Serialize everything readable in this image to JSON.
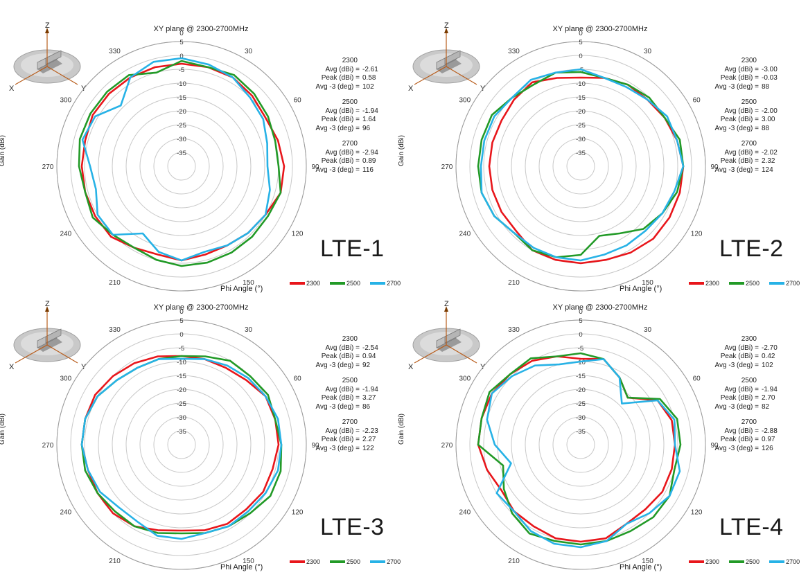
{
  "colors": {
    "s2300": "#e8161b",
    "s2500": "#229a27",
    "s2700": "#27b2e6",
    "grid": "#c8c8c8"
  },
  "common": {
    "chart_title": "XY plane @ 2300-2700MHz",
    "ylabel": "Gain (dBi)",
    "xlabel": "Phi Angle (°)",
    "angle_ticks": [
      "0",
      "30",
      "60",
      "90",
      "120",
      "150",
      "180",
      "210",
      "240",
      "270",
      "300",
      "330"
    ],
    "radial_ticks": [
      "5",
      "0",
      "-5",
      "-10",
      "-15",
      "-20",
      "-25",
      "-30",
      "-35"
    ],
    "axes_icon": {
      "z": "Z",
      "x": "X",
      "y": "Y"
    },
    "legend": [
      "2300",
      "2500",
      "2700"
    ],
    "stat_labels": {
      "avg": "Avg (dBi) =",
      "peak": "Peak (dBi) =",
      "avg3": "Avg -3 (deg) ="
    }
  },
  "panels": [
    {
      "label": "LTE-1",
      "stats": [
        {
          "freq": "2300",
          "avg": "-2.61",
          "peak": "0.58",
          "avg3": "102"
        },
        {
          "freq": "2500",
          "avg": "-1.94",
          "peak": "1.64",
          "avg3": "96"
        },
        {
          "freq": "2700",
          "avg": "-2.94",
          "peak": "0.89",
          "avg3": "116"
        }
      ]
    },
    {
      "label": "LTE-2",
      "stats": [
        {
          "freq": "2300",
          "avg": "-3.00",
          "peak": "-0.03",
          "avg3": "88"
        },
        {
          "freq": "2500",
          "avg": "-2.00",
          "peak": "3.00",
          "avg3": "88"
        },
        {
          "freq": "2700",
          "avg": "-2.02",
          "peak": "2.32",
          "avg3": "124"
        }
      ]
    },
    {
      "label": "LTE-3",
      "stats": [
        {
          "freq": "2300",
          "avg": "-2.54",
          "peak": "0.94",
          "avg3": "92"
        },
        {
          "freq": "2500",
          "avg": "-1.94",
          "peak": "3.27",
          "avg3": "86"
        },
        {
          "freq": "2700",
          "avg": "-2.23",
          "peak": "2.27",
          "avg3": "122"
        }
      ]
    },
    {
      "label": "LTE-4",
      "stats": [
        {
          "freq": "2300",
          "avg": "-2.70",
          "peak": "0.42",
          "avg3": "102"
        },
        {
          "freq": "2500",
          "avg": "-1.94",
          "peak": "2.70",
          "avg3": "82"
        },
        {
          "freq": "2700",
          "avg": "-2.88",
          "peak": "0.97",
          "avg3": "126"
        }
      ]
    }
  ],
  "chart_data": [
    {
      "type": "polar-line",
      "title": "XY plane @ 2300-2700MHz",
      "panel": "LTE-1",
      "xlabel": "Phi Angle (°)",
      "ylabel": "Gain (dBi)",
      "rlim": [
        -40,
        5
      ],
      "theta": [
        0,
        15,
        30,
        45,
        60,
        75,
        90,
        105,
        120,
        135,
        150,
        165,
        180,
        195,
        210,
        225,
        240,
        255,
        270,
        285,
        300,
        315,
        330,
        345
      ],
      "series": [
        {
          "name": "2300",
          "values": [
            -3,
            -3,
            -3,
            -4,
            -5,
            -4,
            -3,
            -3,
            -5,
            -6,
            -7,
            -7,
            -6,
            -7,
            -6,
            -4,
            -4,
            -4,
            -4,
            -4,
            -3,
            -3,
            -3,
            -3
          ]
        },
        {
          "name": "2500",
          "values": [
            -2,
            -3,
            -2,
            -3,
            -4,
            -5,
            -5,
            -3,
            -4,
            -4,
            -4,
            -4,
            -4,
            -5,
            -6,
            -5,
            -3,
            -4,
            -3,
            -2,
            -2,
            -2,
            -2,
            -5
          ]
        },
        {
          "name": "2700",
          "values": [
            -1,
            -2,
            -3,
            -5,
            -6,
            -8,
            -9,
            -7,
            -5,
            -6,
            -7,
            -8,
            -6,
            -8,
            -12,
            -5,
            -5,
            -8,
            -7,
            -3,
            -4,
            -9,
            -3,
            -1
          ]
        }
      ]
    },
    {
      "type": "polar-line",
      "title": "XY plane @ 2300-2700MHz",
      "panel": "LTE-2",
      "xlabel": "Phi Angle (°)",
      "ylabel": "Gain (dBi)",
      "rlim": [
        -40,
        5
      ],
      "theta": [
        0,
        15,
        30,
        45,
        60,
        75,
        90,
        105,
        120,
        135,
        150,
        165,
        180,
        195,
        210,
        225,
        240,
        255,
        270,
        285,
        300,
        315,
        330,
        345
      ],
      "series": [
        {
          "name": "2300",
          "values": [
            -8,
            -7,
            -6,
            -6,
            -5,
            -4,
            -3,
            -3,
            -3,
            -3,
            -4,
            -5,
            -5,
            -5,
            -5,
            -7,
            -7,
            -7,
            -7,
            -7,
            -7,
            -6,
            -5,
            -7
          ]
        },
        {
          "name": "2500",
          "values": [
            -6,
            -7,
            -6,
            -5,
            -5,
            -3,
            -3,
            -4,
            -6,
            -8,
            -12,
            -14,
            -8,
            -6,
            -5,
            -6,
            -4,
            -3,
            -3,
            -3,
            -3,
            -5,
            -6,
            -5
          ]
        },
        {
          "name": "2700",
          "values": [
            -5,
            -7,
            -7,
            -6,
            -4,
            -4,
            -3,
            -5,
            -6,
            -7,
            -7,
            -7,
            -6,
            -6,
            -6,
            -6,
            -4,
            -3,
            -4,
            -4,
            -4,
            -5,
            -4,
            -5
          ]
        }
      ]
    },
    {
      "type": "polar-line",
      "title": "XY plane @ 2300-2700MHz",
      "panel": "LTE-3",
      "xlabel": "Phi Angle (°)",
      "ylabel": "Gain (dBi)",
      "rlim": [
        -40,
        5
      ],
      "theta": [
        0,
        15,
        30,
        45,
        60,
        75,
        90,
        105,
        120,
        135,
        150,
        165,
        180,
        195,
        210,
        225,
        240,
        255,
        270,
        285,
        300,
        315,
        330,
        345
      ],
      "series": [
        {
          "name": "2300",
          "values": [
            -8,
            -8,
            -8,
            -7,
            -5,
            -5,
            -5,
            -6,
            -6,
            -7,
            -7,
            -8,
            -9,
            -8,
            -6,
            -5,
            -5,
            -5,
            -4,
            -4,
            -4,
            -5,
            -6,
            -7
          ]
        },
        {
          "name": "2500",
          "values": [
            -8,
            -7,
            -5,
            -5,
            -4,
            -5,
            -4,
            -3,
            -3,
            -5,
            -6,
            -7,
            -8,
            -7,
            -6,
            -6,
            -5,
            -4,
            -4,
            -4,
            -5,
            -7,
            -8,
            -8
          ]
        },
        {
          "name": "2700",
          "values": [
            -9,
            -8,
            -7,
            -6,
            -5,
            -4,
            -4,
            -4,
            -5,
            -6,
            -6,
            -7,
            -6,
            -6,
            -8,
            -8,
            -6,
            -5,
            -4,
            -4,
            -5,
            -7,
            -8,
            -8
          ]
        }
      ]
    },
    {
      "type": "polar-line",
      "title": "XY plane @ 2300-2700MHz",
      "panel": "LTE-4",
      "xlabel": "Phi Angle (°)",
      "ylabel": "Gain (dBi)",
      "rlim": [
        -40,
        5
      ],
      "theta": [
        0,
        15,
        30,
        45,
        60,
        75,
        90,
        105,
        120,
        135,
        150,
        165,
        180,
        195,
        210,
        225,
        240,
        255,
        270,
        285,
        300,
        315,
        330,
        345
      ],
      "series": [
        {
          "name": "2300",
          "values": [
            -9,
            -8,
            -12,
            -16,
            -8,
            -6,
            -6,
            -6,
            -6,
            -7,
            -7,
            -5,
            -5,
            -5,
            -6,
            -6,
            -7,
            -5,
            -3,
            -3,
            -3,
            -4,
            -5,
            -7
          ]
        },
        {
          "name": "2500",
          "values": [
            -7,
            -8,
            -12,
            -16,
            -7,
            -4,
            -4,
            -5,
            -3,
            -3,
            -4,
            -4,
            -4,
            -4,
            -3,
            -5,
            -8,
            -11,
            -3,
            -3,
            -2,
            -4,
            -4,
            -7
          ]
        },
        {
          "name": "2700",
          "values": [
            -10,
            -8,
            -12,
            -19,
            -8,
            -5,
            -6,
            -3,
            -3,
            -5,
            -7,
            -4,
            -3,
            -3,
            -4,
            -6,
            -5,
            -14,
            -9,
            -5,
            -3,
            -5,
            -7,
            -10
          ]
        }
      ]
    }
  ]
}
